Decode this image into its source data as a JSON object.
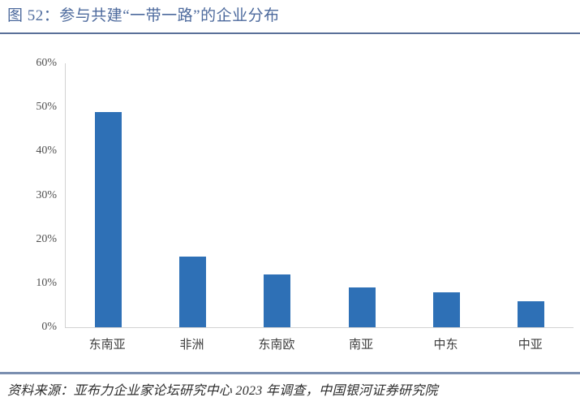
{
  "header": {
    "title": "图 52：参与共建“一带一路”的企业分布"
  },
  "chart_data": {
    "type": "bar",
    "title": "参与共建“一带一路”的企业分布",
    "categories": [
      "东南亚",
      "非洲",
      "东南欧",
      "南亚",
      "中东",
      "中亚"
    ],
    "values": [
      49,
      16,
      12,
      9,
      8,
      6
    ],
    "unit": "%",
    "xlabel": "",
    "ylabel": "",
    "ylim": [
      0,
      60
    ],
    "yticks": [
      "0%",
      "10%",
      "20%",
      "30%",
      "40%",
      "50%",
      "60%"
    ],
    "grid": false,
    "legend": false,
    "bar_color": "#2e70b6"
  },
  "footer": {
    "source": "资料来源：亚布力企业家论坛研究中心 2023 年调查，中国银河证券研究院"
  },
  "colors": {
    "bar_blue": "#2e70b6",
    "title_blue": "#4d6a9d",
    "title_rule_blue": "#5a7099",
    "bottom_rule_blue": "#7b8fb0",
    "axis_line_gray": "#d2d2d2",
    "tick_label_gray": "#515151",
    "category_label_gray": "#3d3d3d",
    "source_text": "#2d2d2d"
  }
}
